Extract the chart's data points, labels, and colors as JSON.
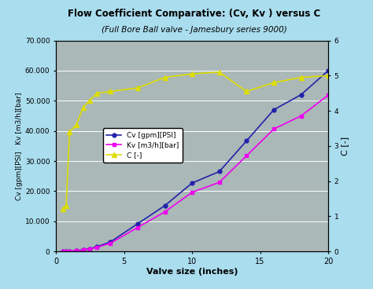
{
  "title": "Flow Coefficient Comparative: (Cv, Kv ) versus C",
  "subtitle": "(Full Bore Ball valve - Jamesbury series 9000)",
  "xlabel": "Valve size (inches)",
  "ylabel_left": "Cv [gpm][PSI]   Kv [m3/h][bar]",
  "ylabel_right": "C [-]",
  "background_color": "#aaddee",
  "plot_bg_color": "#aab8b8",
  "valve_size": [
    0.5,
    0.75,
    1.0,
    1.5,
    2.0,
    2.5,
    3.0,
    4.0,
    6.0,
    8.0,
    10.0,
    12.0,
    14.0,
    16.0,
    18.0,
    20.0
  ],
  "Cv": [
    28,
    55,
    110,
    270,
    520,
    940,
    1570,
    3150,
    9200,
    15200,
    22700,
    26500,
    36700,
    47000,
    52000,
    60000
  ],
  "Kv": [
    24,
    48,
    95,
    234,
    450,
    813,
    1358,
    2725,
    7954,
    13141,
    19629,
    22913,
    31734,
    40628,
    44958,
    51876
  ],
  "C": [
    1.2,
    1.3,
    3.4,
    3.6,
    4.1,
    4.3,
    4.5,
    4.55,
    4.65,
    4.95,
    5.05,
    5.1,
    4.55,
    4.8,
    4.95,
    5.0
  ],
  "Cv_color": "#2222aa",
  "Kv_color": "#ee00ee",
  "C_color": "#dddd00",
  "ylim_left": [
    0,
    70000
  ],
  "ylim_right": [
    0,
    6
  ],
  "xlim": [
    0,
    20
  ],
  "yticks_left": [
    0,
    10000,
    20000,
    30000,
    40000,
    50000,
    60000,
    70000
  ],
  "ytick_labels_left": [
    "0",
    "10.000",
    "20.000",
    "30.000",
    "40.000",
    "50.000",
    "60.000",
    "70.000"
  ],
  "yticks_right": [
    0,
    1,
    2,
    3,
    4,
    5,
    6
  ],
  "xticks": [
    0,
    5,
    10,
    15,
    20
  ]
}
